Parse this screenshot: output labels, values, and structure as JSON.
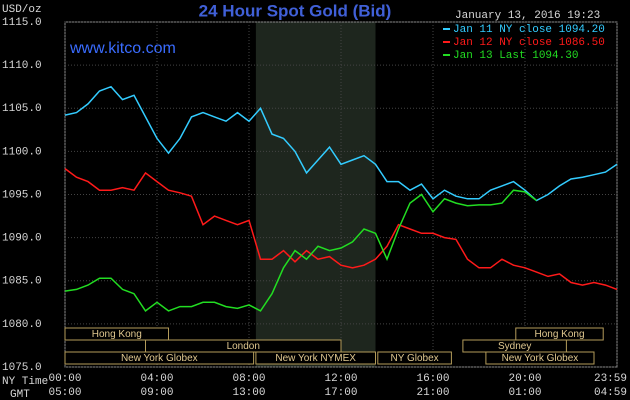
{
  "chart_data": {
    "type": "line",
    "title": "24 Hour Spot Gold (Bid)",
    "date": "January 13, 2016 19:23",
    "watermark": "www.kitco.com",
    "y_label": "USD/oz",
    "x_label": "NY Time",
    "x2_label": "GMT",
    "xlim": [
      0,
      24
    ],
    "ylim": [
      1075,
      1115
    ],
    "grid": true,
    "xticks": [
      {
        "value": 0,
        "label": "00:00"
      },
      {
        "value": 4,
        "label": "04:00"
      },
      {
        "value": 8,
        "label": "08:00"
      },
      {
        "value": 12,
        "label": "12:00"
      },
      {
        "value": 16,
        "label": "16:00"
      },
      {
        "value": 20,
        "label": "20:00"
      },
      {
        "value": 24,
        "label": "23:59"
      }
    ],
    "x2_tick_labels": [
      "05:00",
      "09:00",
      "13:00",
      "17:00",
      "21:00",
      "01:00",
      "04:59"
    ],
    "yticks": [
      {
        "value": 1075,
        "label": "1075.0"
      },
      {
        "value": 1080,
        "label": "1080.0"
      },
      {
        "value": 1085,
        "label": "1085.0"
      },
      {
        "value": 1090,
        "label": "1090.0"
      },
      {
        "value": 1095,
        "label": "1095.0"
      },
      {
        "value": 1100,
        "label": "1100.0"
      },
      {
        "value": 1105,
        "label": "1105.0"
      },
      {
        "value": 1110,
        "label": "1110.0"
      },
      {
        "value": 1115,
        "label": "1115.0"
      }
    ],
    "sessions": [
      {
        "label": "Hong Kong",
        "row": 0,
        "start": 0,
        "end": 4.5
      },
      {
        "label": "Hong Kong",
        "row": 0,
        "start": 19.6,
        "end": 23.4
      },
      {
        "label": "London",
        "row": 1,
        "start": 3.5,
        "end": 12
      },
      {
        "label": "Sydney",
        "row": 1,
        "start": 17.3,
        "end": 21.8
      },
      {
        "label": "New York Globex",
        "row": 2,
        "start": 0,
        "end": 8.2
      },
      {
        "label": "New York NYMEX",
        "row": 2,
        "start": 8.3,
        "end": 13.5
      },
      {
        "label": "NY Globex",
        "row": 2,
        "start": 13.6,
        "end": 16.8
      },
      {
        "label": "New York Globex",
        "row": 2,
        "start": 18.3,
        "end": 23
      }
    ],
    "shade": [
      8.3,
      13.5
    ],
    "series": [
      {
        "name": "Jan 11 NY close 1094.20",
        "color": "#33ccff",
        "x": [
          0,
          0.5,
          1,
          1.5,
          2,
          2.5,
          3,
          3.5,
          4,
          4.5,
          5,
          5.5,
          6,
          6.5,
          7,
          7.5,
          8,
          8.5,
          9,
          9.5,
          10,
          10.5,
          11,
          11.5,
          12,
          12.5,
          13,
          13.5,
          14,
          14.5,
          15,
          15.5,
          16,
          16.5,
          17,
          17.5,
          18,
          18.5,
          19,
          19.5,
          20,
          20.5,
          21,
          21.5,
          22,
          22.5,
          23,
          23.5,
          24
        ],
        "values": [
          1104.2,
          1104.5,
          1105.5,
          1107,
          1107.5,
          1106,
          1106.5,
          1104,
          1101.5,
          1099.8,
          1101.5,
          1104,
          1104.5,
          1104,
          1103.5,
          1104.5,
          1103.5,
          1105,
          1102,
          1101.5,
          1100,
          1097.5,
          1099,
          1100.5,
          1098.5,
          1099,
          1099.5,
          1098.5,
          1096.5,
          1096.5,
          1095.5,
          1096.2,
          1094.5,
          1095.5,
          1094.8,
          1094.5,
          1094.5,
          1095.5,
          1096,
          1096.5,
          1095.5,
          1094.3,
          1095,
          1096,
          1096.8,
          1097,
          1097.3,
          1097.6,
          1098.5
        ]
      },
      {
        "name": "Jan 12 NY close 1086.50",
        "color": "#ff1a1a",
        "x": [
          0,
          0.5,
          1,
          1.5,
          2,
          2.5,
          3,
          3.5,
          4,
          4.5,
          5,
          5.5,
          6,
          6.5,
          7,
          7.5,
          8,
          8.5,
          9,
          9.5,
          10,
          10.5,
          11,
          11.5,
          12,
          12.5,
          13,
          13.5,
          14,
          14.5,
          15,
          15.5,
          16,
          16.5,
          17,
          17.5,
          18,
          18.5,
          19,
          19.5,
          20,
          20.5,
          21,
          21.5,
          22,
          22.5,
          23,
          23.5,
          24
        ],
        "values": [
          1098,
          1097,
          1096.5,
          1095.5,
          1095.5,
          1095.8,
          1095.5,
          1097.5,
          1096.5,
          1095.5,
          1095.2,
          1094.8,
          1091.5,
          1092.5,
          1092,
          1091.5,
          1092,
          1087.5,
          1087.5,
          1088.5,
          1087.2,
          1088.5,
          1087.5,
          1087.8,
          1086.8,
          1086.5,
          1086.8,
          1087.5,
          1089,
          1091.5,
          1091,
          1090.5,
          1090.5,
          1090,
          1089.8,
          1087.5,
          1086.5,
          1086.5,
          1087.5,
          1086.8,
          1086.5,
          1086,
          1085.5,
          1085.8,
          1084.8,
          1084.5,
          1084.8,
          1084.5,
          1084
        ]
      },
      {
        "name": "Jan 13 Last 1094.30",
        "color": "#22dd22",
        "x": [
          0,
          0.5,
          1,
          1.5,
          2,
          2.5,
          3,
          3.5,
          4,
          4.5,
          5,
          5.5,
          6,
          6.5,
          7,
          7.5,
          8,
          8.5,
          9,
          9.5,
          10,
          10.5,
          11,
          11.5,
          12,
          12.5,
          13,
          13.5,
          14,
          14.5,
          15,
          15.5,
          16,
          16.5,
          17,
          17.5,
          18,
          18.5,
          19,
          19.5,
          20,
          20.5
        ],
        "values": [
          1083.8,
          1084,
          1084.5,
          1085.3,
          1085.3,
          1084,
          1083.5,
          1081.5,
          1082.5,
          1081.5,
          1082,
          1082,
          1082.5,
          1082.5,
          1082,
          1081.8,
          1082.2,
          1081.5,
          1083.5,
          1086.5,
          1088.5,
          1087.5,
          1089,
          1088.5,
          1088.8,
          1089.5,
          1091,
          1090.5,
          1087.5,
          1091,
          1094,
          1095,
          1093,
          1094.5,
          1094,
          1093.7,
          1093.8,
          1093.8,
          1094,
          1095.5,
          1095.3,
          1094.3
        ]
      }
    ]
  }
}
